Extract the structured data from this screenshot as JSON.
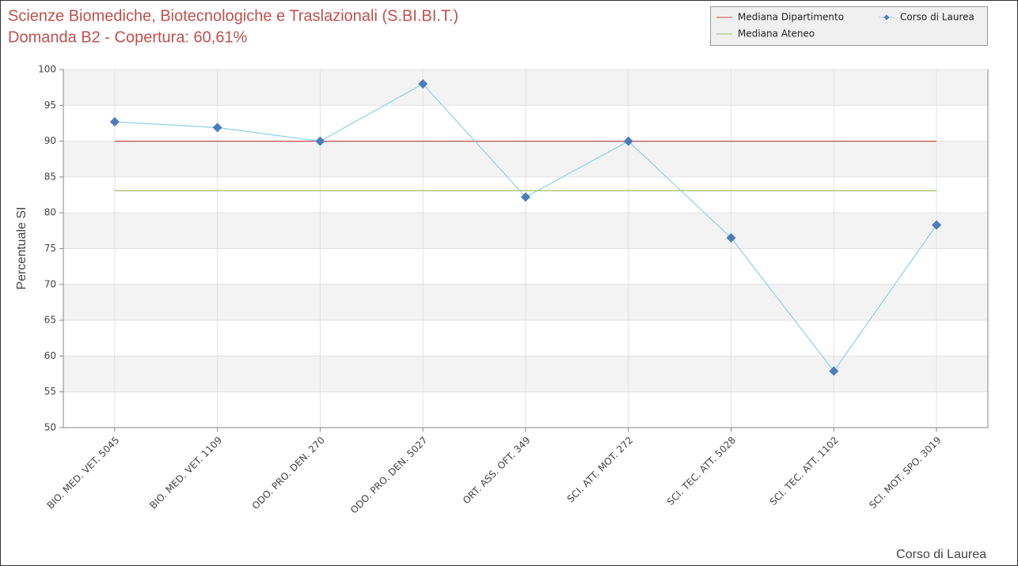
{
  "chart_data": {
    "type": "line",
    "title": "Scienze Biomediche, Biotecnologiche e Traslazionali (S.BI.BI.T.)",
    "subtitle": "Domanda B2 - Copertura: 60,61%",
    "x_label": "Corso di Laurea",
    "y_label": "Percentuale SI",
    "categories": [
      "BIO. MED. VET. 5045",
      "BIO. MED. VET. 1109",
      "ODO. PRO. DEN. 270",
      "ODO. PRO. DEN. 5027",
      "ORT. ASS. OFT. 349",
      "SCI. ATT. MOT. 272",
      "SCI. TEC. ATT. 5028",
      "SCI. TEC. ATT. 1102",
      "SCI. MOT. SPO. 3019"
    ],
    "series": [
      {
        "name": "Mediana Dipartimento",
        "color": "#c0504d",
        "values": [
          90,
          90,
          90,
          90,
          90,
          90,
          90,
          90,
          90
        ]
      },
      {
        "name": "Mediana Ateneo",
        "color": "#9bbb59",
        "values": [
          83.1,
          83.1,
          83.1,
          83.1,
          83.1,
          83.1,
          83.1,
          83.1,
          83.1
        ]
      },
      {
        "name": "Corso di Laurea",
        "color": "#8fd0e8",
        "marker_color": "#4a7ebb",
        "marker": "diamond",
        "values": [
          92.7,
          91.9,
          90,
          98,
          82.2,
          90,
          76.5,
          57.9,
          78.3
        ]
      }
    ],
    "ylim": [
      50,
      100
    ],
    "yticks": [
      50,
      55,
      60,
      65,
      70,
      75,
      80,
      85,
      90,
      95,
      100
    ],
    "grid": true,
    "legend": "top-right"
  }
}
